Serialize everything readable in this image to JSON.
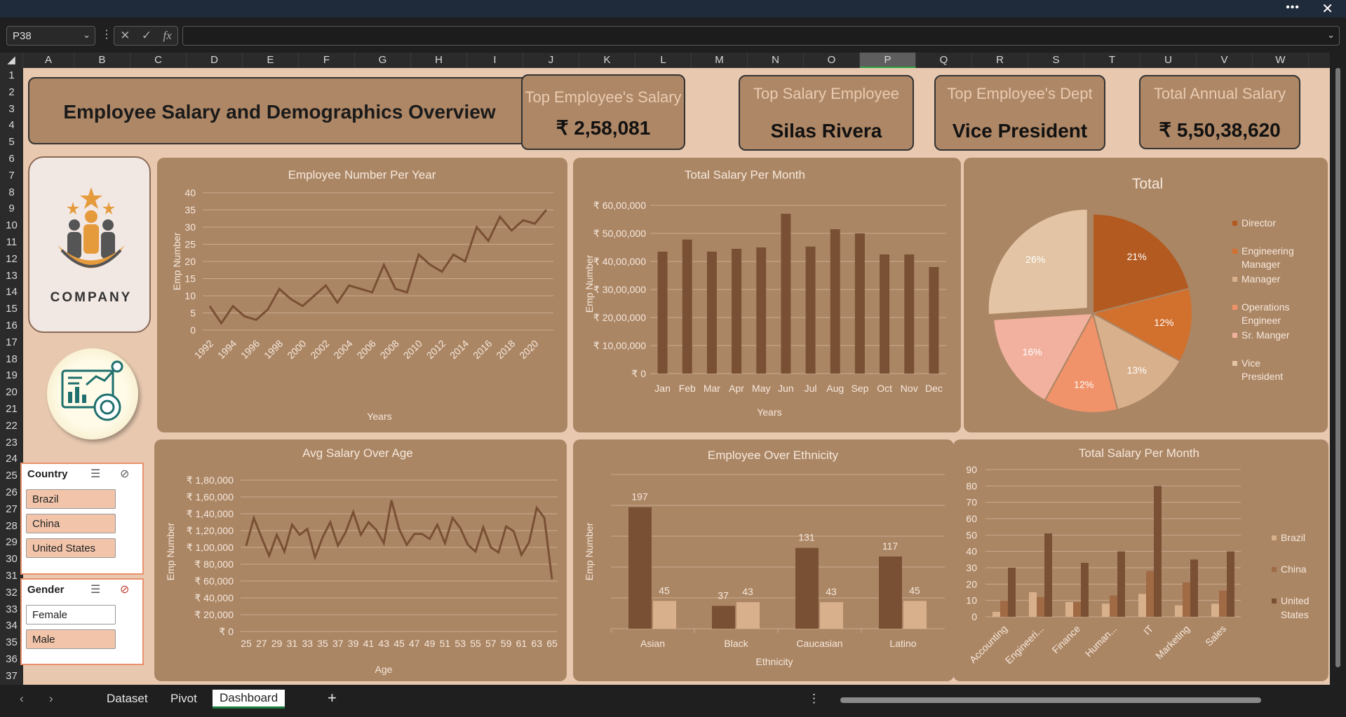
{
  "window": {
    "more": "•••",
    "close": "✕"
  },
  "formula": {
    "namebox": "P38",
    "fx": "fx"
  },
  "columns": [
    "A",
    "B",
    "C",
    "D",
    "E",
    "F",
    "G",
    "H",
    "I",
    "J",
    "K",
    "L",
    "M",
    "N",
    "O",
    "P",
    "Q",
    "R",
    "S",
    "T",
    "U",
    "V",
    "W"
  ],
  "selected_column": "P",
  "rows": [
    "1",
    "2",
    "3",
    "4",
    "5",
    "6",
    "7",
    "8",
    "9",
    "10",
    "11",
    "12",
    "13",
    "14",
    "15",
    "16",
    "17",
    "18",
    "19",
    "20",
    "21",
    "22",
    "23",
    "24",
    "25",
    "26",
    "27",
    "28",
    "29",
    "30",
    "31",
    "32",
    "33",
    "34",
    "35",
    "36",
    "37"
  ],
  "dashboard": {
    "title": "Employee Salary and Demographics Overview",
    "kpis": [
      {
        "title": "Top Employee's Salary",
        "value": "₹ 2,58,081"
      },
      {
        "title": "Top Salary Employee",
        "value": "Silas Rivera"
      },
      {
        "title": "Top Employee's Dept",
        "value": "Vice President"
      },
      {
        "title": "Total Annual Salary",
        "value": "₹ 5,50,38,620"
      }
    ],
    "logo_text": "COMPANY"
  },
  "slicers": {
    "country": {
      "title": "Country",
      "items": [
        {
          "label": "Brazil",
          "selected": true
        },
        {
          "label": "China",
          "selected": true
        },
        {
          "label": "United States",
          "selected": true
        }
      ]
    },
    "gender": {
      "title": "Gender",
      "items": [
        {
          "label": "Female",
          "selected": false
        },
        {
          "label": "Male",
          "selected": true
        }
      ]
    }
  },
  "chart_data": [
    {
      "type": "line",
      "title": "Employee Number Per Year",
      "xlabel": "Years",
      "ylabel": "Emp Number",
      "ylim": [
        0,
        40
      ],
      "yticks": [
        "0",
        "5",
        "10",
        "15",
        "20",
        "25",
        "30",
        "35",
        "40"
      ],
      "xticklabels": [
        "1992",
        "1994",
        "1996",
        "1998",
        "2000",
        "2002",
        "2004",
        "2006",
        "2008",
        "2010",
        "2012",
        "2014",
        "2016",
        "2018",
        "2020"
      ],
      "x": [
        1992,
        1993,
        1994,
        1995,
        1996,
        1997,
        1998,
        1999,
        2000,
        2001,
        2002,
        2003,
        2004,
        2005,
        2006,
        2007,
        2008,
        2009,
        2010,
        2011,
        2012,
        2013,
        2014,
        2015,
        2016,
        2017,
        2018,
        2019,
        2020,
        2021
      ],
      "values": [
        7,
        2,
        7,
        4,
        3,
        6,
        12,
        9,
        7,
        10,
        13,
        8,
        13,
        12,
        11,
        19,
        12,
        11,
        22,
        19,
        17,
        22,
        20,
        30,
        26,
        33,
        29,
        32,
        31,
        35
      ]
    },
    {
      "type": "bar",
      "title": "Total Salary Per Month",
      "xlabel": "Years",
      "ylabel": "Emp Number",
      "yticks": [
        "₹ 0",
        "₹ 10,00,000",
        "₹ 20,00,000",
        "₹ 30,00,000",
        "₹ 40,00,000",
        "₹ 50,00,000",
        "₹ 60,00,000"
      ],
      "ylim": [
        0,
        6000000
      ],
      "categories": [
        "Jan",
        "Feb",
        "Mar",
        "Apr",
        "May",
        "Jun",
        "Jul",
        "Aug",
        "Sep",
        "Oct",
        "Nov",
        "Dec"
      ],
      "values": [
        4350000,
        4780000,
        4350000,
        4450000,
        4500000,
        5700000,
        4530000,
        5150000,
        5000000,
        4250000,
        4250000,
        3800000
      ]
    },
    {
      "type": "pie",
      "title": "Total",
      "legend": [
        "Director",
        "Engineering Manager",
        "Manager",
        "Operations Engineer",
        "Sr. Manger",
        "Vice President"
      ],
      "slices": [
        {
          "name": "Director",
          "value": 21,
          "label": "21%",
          "color": "#b35a20"
        },
        {
          "name": "Engineering Manager",
          "value": 12,
          "label": "12%",
          "color": "#d2702e"
        },
        {
          "name": "Manager",
          "value": 13,
          "label": "13%",
          "color": "#d9b08c"
        },
        {
          "name": "Operations Engineer",
          "value": 12,
          "label": "12%",
          "color": "#f0926a"
        },
        {
          "name": "Sr. Manger",
          "value": 16,
          "label": "16%",
          "color": "#f2b19e"
        },
        {
          "name": "Vice President",
          "value": 26,
          "label": "26%",
          "color": "#e3c4a4"
        }
      ]
    },
    {
      "type": "line",
      "title": "Avg Salary Over Age",
      "xlabel": "Age",
      "ylabel": "Emp Number",
      "ylim": [
        0,
        180000
      ],
      "yticks": [
        "₹ 0",
        "₹ 20,000",
        "₹ 40,000",
        "₹ 60,000",
        "₹ 80,000",
        "₹ 1,00,000",
        "₹ 1,20,000",
        "₹ 1,40,000",
        "₹ 1,60,000",
        "₹ 1,80,000"
      ],
      "xticklabels": [
        "25",
        "27",
        "29",
        "31",
        "33",
        "35",
        "37",
        "39",
        "41",
        "43",
        "45",
        "47",
        "49",
        "51",
        "53",
        "55",
        "57",
        "59",
        "61",
        "63",
        "65"
      ],
      "x": [
        25,
        26,
        27,
        28,
        29,
        30,
        31,
        32,
        33,
        34,
        35,
        36,
        37,
        38,
        39,
        40,
        41,
        42,
        43,
        44,
        45,
        46,
        47,
        48,
        49,
        50,
        51,
        52,
        53,
        54,
        55,
        56,
        57,
        58,
        59,
        60,
        61,
        62,
        63,
        64,
        65
      ],
      "values": [
        102000,
        135000,
        112000,
        90000,
        115000,
        95000,
        127000,
        115000,
        122000,
        88000,
        112000,
        130000,
        102000,
        118000,
        142000,
        115000,
        130000,
        121000,
        105000,
        156000,
        122000,
        103000,
        116000,
        116000,
        110000,
        127000,
        105000,
        135000,
        123000,
        103000,
        95000,
        124000,
        100000,
        94000,
        125000,
        119000,
        91000,
        106000,
        147000,
        135000,
        62000
      ]
    },
    {
      "type": "bar",
      "title": "Employee Over Ethnicity",
      "xlabel": "Ethnicity",
      "ylabel": "Emp Number",
      "categories": [
        "Asian",
        "Black",
        "Caucasian",
        "Latino"
      ],
      "series": [
        {
          "values": [
            197,
            37,
            131,
            117
          ],
          "color": "#7a5034"
        },
        {
          "values": [
            45,
            43,
            43,
            45
          ],
          "color": "#d9b08c"
        }
      ]
    },
    {
      "type": "bar",
      "title": "Total Salary Per Month",
      "ylim": [
        0,
        90
      ],
      "yticks": [
        "0",
        "10",
        "20",
        "30",
        "40",
        "50",
        "60",
        "70",
        "80",
        "90"
      ],
      "categories": [
        "Accounting",
        "Engineeri...",
        "Finance",
        "Human...",
        "IT",
        "Marketing",
        "Sales"
      ],
      "series": [
        {
          "name": "Brazil",
          "values": [
            3,
            15,
            9,
            8,
            14,
            7,
            8
          ],
          "color": "#d9b08c"
        },
        {
          "name": "China",
          "values": [
            10,
            12,
            9,
            13,
            28,
            21,
            16
          ],
          "color": "#a06a45"
        },
        {
          "name": "United States",
          "values": [
            30,
            51,
            33,
            40,
            80,
            35,
            40
          ],
          "color": "#7a5034"
        }
      ]
    }
  ],
  "tabs": [
    "Dataset",
    "Pivot",
    "Dashboard"
  ],
  "active_tab": "Dashboard",
  "add_tab": "+"
}
